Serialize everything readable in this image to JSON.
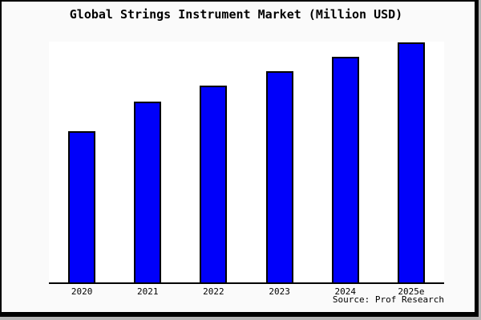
{
  "chart_data": {
    "type": "bar",
    "title": "Global Strings Instrument Market (Million USD)",
    "categories": [
      "2020",
      "2021",
      "2022",
      "2023",
      "2024",
      "2025e"
    ],
    "values": [
      63,
      75.3,
      82,
      88,
      94.3,
      100
    ],
    "xlabel": "",
    "ylabel": "",
    "ylim": [
      0,
      100.5
    ],
    "grid": false,
    "legend": false,
    "y_axis_labels_visible": false,
    "source": "Source: Prof Research"
  },
  "colors": {
    "bar_fill": "#0000fa",
    "bar_border": "#000000",
    "page_background": "#fafafa",
    "plot_background": "#ffffff",
    "axis_line": "#000000",
    "frame_border": "#000000",
    "text": "#000000"
  }
}
